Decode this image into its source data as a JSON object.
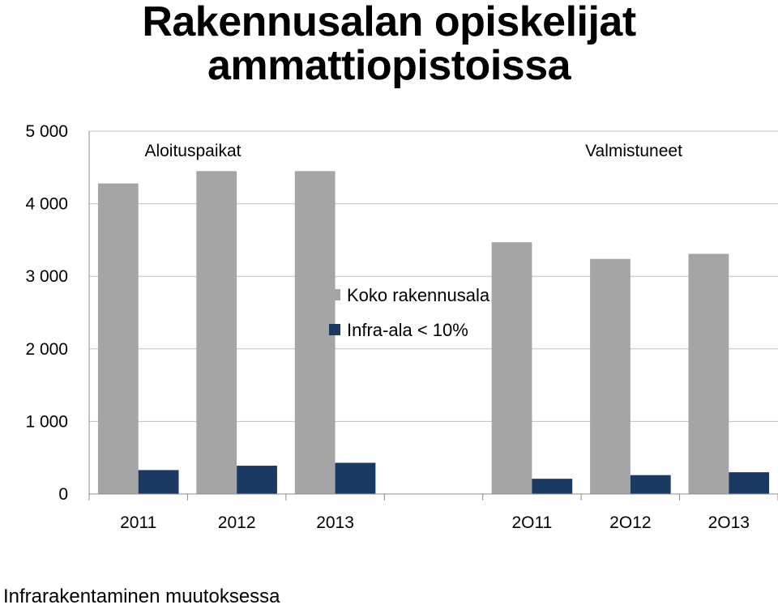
{
  "title_lines": [
    "Rakennusalan opiskelijat",
    "ammattiopistoissa"
  ],
  "footer": "Infrarakentaminen muutoksessa",
  "chart_data": {
    "type": "bar",
    "categories": [
      "2011",
      "2012",
      "2013",
      "",
      "2O11",
      "2O12",
      "2O13"
    ],
    "series": [
      {
        "name": "Koko rakennusala",
        "color": "#a5a5a5",
        "values": [
          4280,
          4450,
          4450,
          null,
          3470,
          3240,
          3310
        ]
      },
      {
        "name": "Infra-ala < 10%",
        "color": "#1a3a63",
        "values": [
          330,
          390,
          430,
          null,
          210,
          260,
          300
        ]
      }
    ],
    "yticks": [
      "0",
      "1 000",
      "2 000",
      "3 000",
      "4 000",
      "5 000"
    ],
    "ylim": [
      0,
      5000
    ],
    "grid": true,
    "legend_position": "center",
    "annotations": [
      "Aloituspaikat",
      "Valmistuneet"
    ]
  }
}
